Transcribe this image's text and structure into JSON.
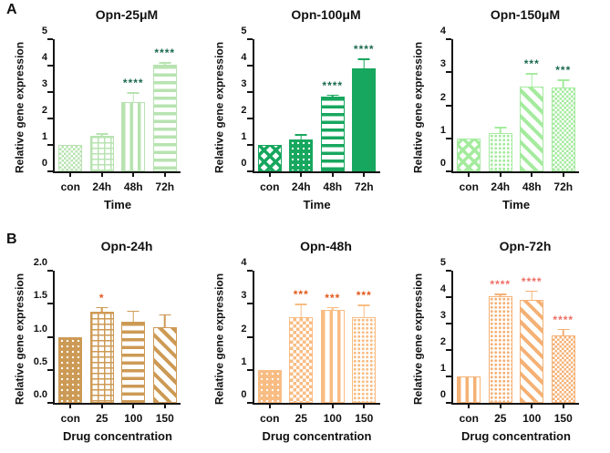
{
  "figure": {
    "panel_a_label": "A",
    "panel_b_label": "B"
  },
  "chart_data": [
    {
      "type": "bar",
      "panel": "A",
      "title": "Opn-25μM",
      "xlabel": "Time",
      "ylabel": "Relative gene expression",
      "ylim": [
        0,
        5
      ],
      "ytick_step": 1,
      "ydecimals": 0,
      "bar_color": "#b7e3b0",
      "sig_color": "#1b6a4e",
      "categories": [
        "con",
        "24h",
        "48h",
        "72h"
      ],
      "values": [
        1.0,
        1.35,
        2.62,
        4.02
      ],
      "errors": [
        0,
        0.09,
        0.38,
        0.11
      ],
      "sig": [
        "",
        "",
        "****",
        "****"
      ],
      "patterns": [
        "checkerfine",
        "bricks",
        "vstripes",
        "hstripes"
      ]
    },
    {
      "type": "bar",
      "panel": "A",
      "title": "Opn-100μM",
      "xlabel": "Time",
      "ylabel": "Relative gene expression",
      "ylim": [
        0,
        5
      ],
      "ytick_step": 1,
      "ydecimals": 0,
      "bar_color": "#17a75e",
      "sig_color": "#1b6a4e",
      "categories": [
        "con",
        "24h",
        "48h",
        "72h"
      ],
      "values": [
        1.0,
        1.22,
        2.82,
        3.9
      ],
      "errors": [
        0,
        0.18,
        0.09,
        0.36
      ],
      "sig": [
        "",
        "",
        "****",
        "****"
      ],
      "patterns": [
        "diamond",
        "dots",
        "hstripes",
        "solid"
      ]
    },
    {
      "type": "bar",
      "panel": "A",
      "title": "Opn-150μM",
      "xlabel": "Time",
      "ylabel": "Relative gene expression",
      "ylim": [
        0,
        4
      ],
      "ytick_step": 1,
      "ydecimals": 0,
      "bar_color": "#a4eb9e",
      "sig_color": "#1b6a4e",
      "categories": [
        "con",
        "24h",
        "48h",
        "72h"
      ],
      "values": [
        1.0,
        1.15,
        2.57,
        2.55
      ],
      "errors": [
        0,
        0.2,
        0.4,
        0.23
      ],
      "sig": [
        "",
        "",
        "***",
        "***"
      ],
      "patterns": [
        "diamond",
        "dotsdense",
        "diag",
        "checkerfine"
      ]
    },
    {
      "type": "bar",
      "panel": "B",
      "title": "Opn-24h",
      "xlabel": "Drug concentration",
      "ylabel": "Relative gene expression",
      "ylim": [
        0,
        2
      ],
      "ytick_step": 0.5,
      "ydecimals": 1,
      "bar_color": "#cd9a55",
      "sig_color": "#e2581b",
      "categories": [
        "con",
        "25",
        "100",
        "150"
      ],
      "values": [
        1.0,
        1.38,
        1.23,
        1.15
      ],
      "errors": [
        0,
        0.07,
        0.17,
        0.19
      ],
      "sig": [
        "",
        "*",
        "",
        ""
      ],
      "patterns": [
        "dots",
        "bricks",
        "hstripes",
        "diag"
      ]
    },
    {
      "type": "bar",
      "panel": "B",
      "title": "Opn-48h",
      "xlabel": "Drug concentration",
      "ylabel": "Relative gene expression",
      "ylim": [
        0,
        4
      ],
      "ytick_step": 1,
      "ydecimals": 0,
      "bar_color": "#f9bc83",
      "sig_color": "#e2581b",
      "categories": [
        "con",
        "25",
        "100",
        "150"
      ],
      "values": [
        1.0,
        2.6,
        2.82,
        2.58
      ],
      "errors": [
        0,
        0.4,
        0.09,
        0.4
      ],
      "sig": [
        "",
        "***",
        "***",
        "***"
      ],
      "patterns": [
        "dots",
        "checker",
        "vstripes",
        "dotsdense"
      ]
    },
    {
      "type": "bar",
      "panel": "B",
      "title": "Opn-72h",
      "xlabel": "Drug concentration",
      "ylabel": "Relative gene expression",
      "ylim": [
        0,
        5
      ],
      "ytick_step": 1,
      "ydecimals": 0,
      "bar_color": "#f5b175",
      "sig_color": "#ee6e64",
      "categories": [
        "con",
        "25",
        "100",
        "150"
      ],
      "values": [
        1.0,
        4.02,
        3.9,
        2.55
      ],
      "errors": [
        0,
        0.12,
        0.35,
        0.25
      ],
      "sig": [
        "",
        "****",
        "****",
        "****"
      ],
      "patterns": [
        "vstripes",
        "dotsdense",
        "diag",
        "checkerfine"
      ]
    }
  ]
}
